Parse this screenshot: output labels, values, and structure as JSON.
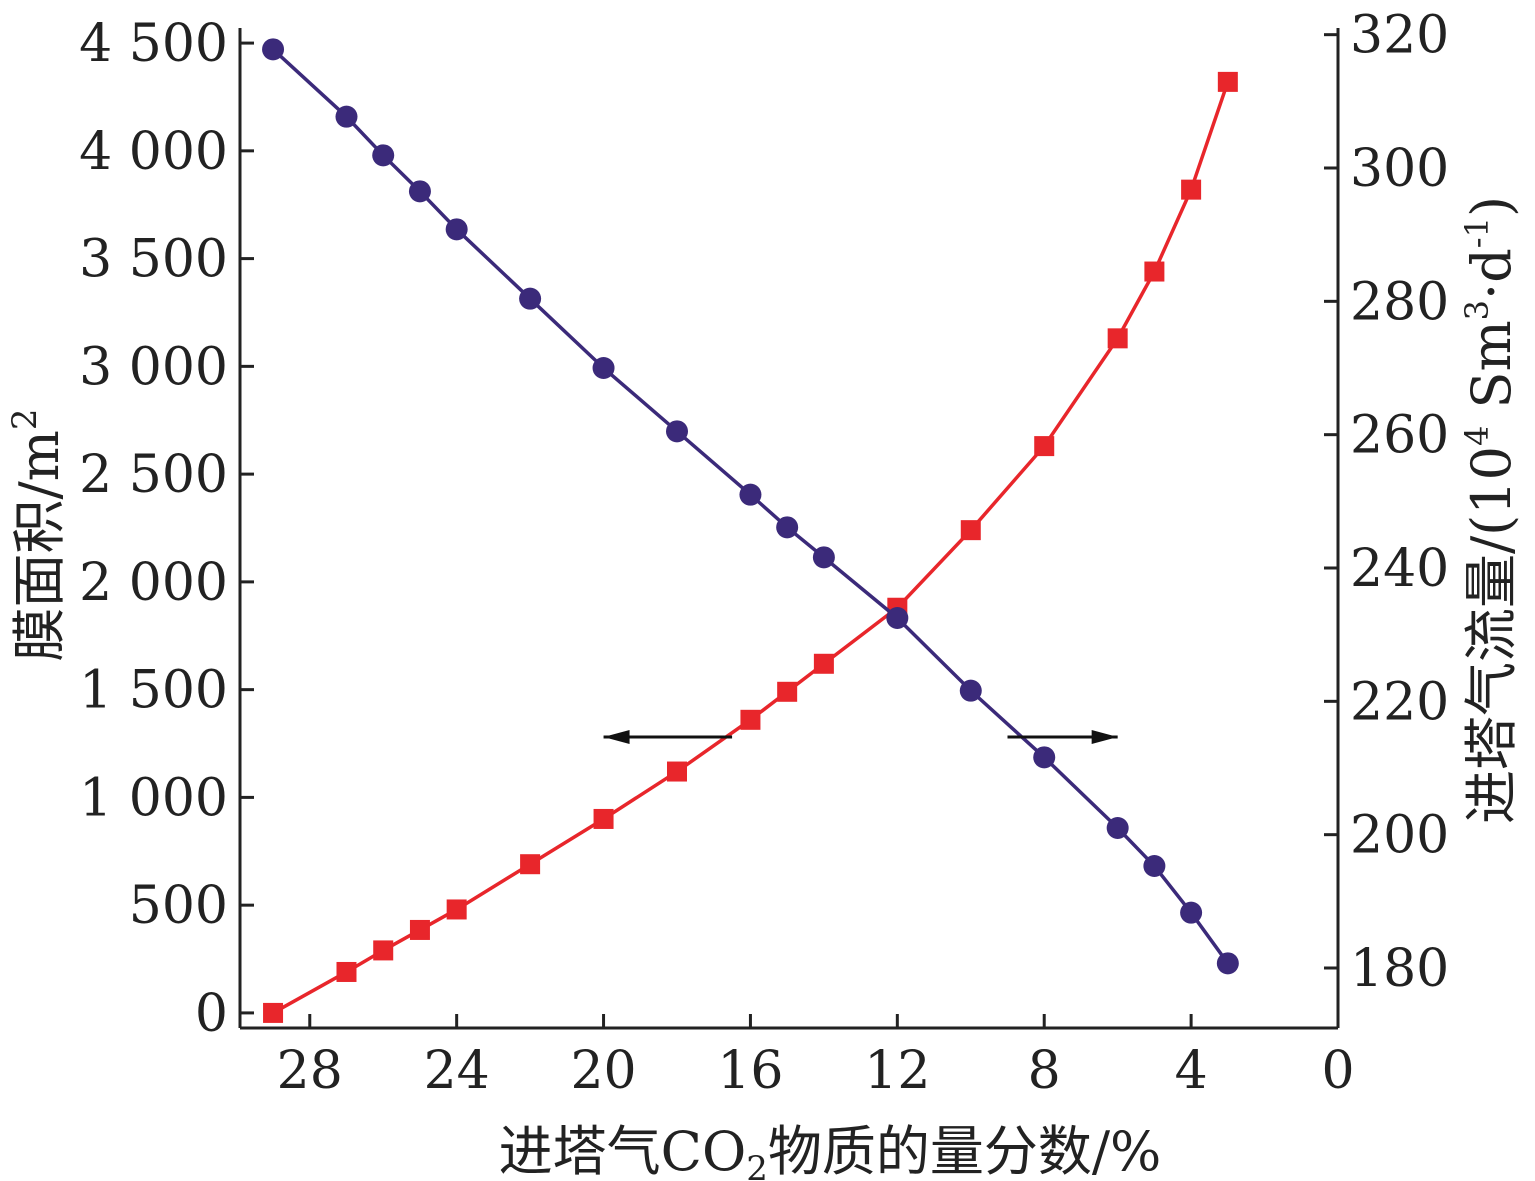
{
  "chart_data": {
    "type": "line",
    "title": "",
    "xlabel_prefix": "进塔气CO",
    "xlabel_sub": "2",
    "xlabel_suffix": "物质的量分数/%",
    "ylabel_left_main": "膜面积/m",
    "ylabel_left_sup": "2",
    "ylabel_right_main": "进塔气流量/(10",
    "ylabel_right_sup1": "4",
    "ylabel_right_mid": " Sm",
    "ylabel_right_sup2": "3",
    "ylabel_right_mid2": "·d",
    "ylabel_right_sup3": "-1",
    "ylabel_right_end": ")",
    "xlim": [
      29.9,
      0
    ],
    "x_reversed": true,
    "x_ticks": [
      28,
      24,
      20,
      16,
      12,
      8,
      4,
      0
    ],
    "x_tick_labels": [
      "28",
      "24",
      "20",
      "16",
      "12",
      "8",
      "4",
      "0"
    ],
    "ylim_left": [
      -70,
      4570
    ],
    "y_left_ticks": [
      0,
      500,
      1000,
      1500,
      2000,
      2500,
      3000,
      3500,
      4000,
      4500
    ],
    "y_left_tick_labels": [
      "0",
      "500",
      "1 000",
      "1 500",
      "2 000",
      "2 500",
      "3 000",
      "3 500",
      "4 000",
      "4 500"
    ],
    "ylim_right": [
      171,
      321
    ],
    "y_right_ticks": [
      180,
      200,
      220,
      240,
      260,
      280,
      300,
      320
    ],
    "y_right_tick_labels": [
      "180",
      "200",
      "220",
      "240",
      "260",
      "280",
      "300",
      "320"
    ],
    "legend": "none",
    "grid": false,
    "series": [
      {
        "axis": "left",
        "marker": "square",
        "color": "#e8262b",
        "x": [
          29,
          27,
          26,
          25,
          24,
          22,
          20,
          18,
          16,
          15,
          14,
          12,
          10,
          8,
          6,
          5,
          4,
          3
        ],
        "y": [
          0,
          190,
          290,
          385,
          480,
          690,
          900,
          1120,
          1360,
          1490,
          1620,
          1880,
          2240,
          2630,
          3130,
          3440,
          3820,
          4320
        ]
      },
      {
        "axis": "right",
        "marker": "circle",
        "color": "#3b2a7a",
        "x": [
          29,
          27,
          26,
          25,
          24,
          22,
          20,
          18,
          16,
          15,
          14,
          12,
          10,
          8,
          6,
          5,
          4,
          3
        ],
        "y": [
          317.8,
          307.7,
          301.9,
          296.5,
          290.8,
          280.4,
          270.0,
          260.5,
          251.0,
          246.1,
          241.6,
          232.5,
          221.6,
          211.6,
          201.0,
          195.3,
          188.3,
          180.7
        ]
      }
    ],
    "arrows": [
      {
        "direction": "left",
        "from_x": 16.5,
        "to_x": 20.0,
        "y_left": 1280
      },
      {
        "direction": "right",
        "from_x": 9.0,
        "to_x": 6.0,
        "y_left": 1280
      }
    ]
  }
}
